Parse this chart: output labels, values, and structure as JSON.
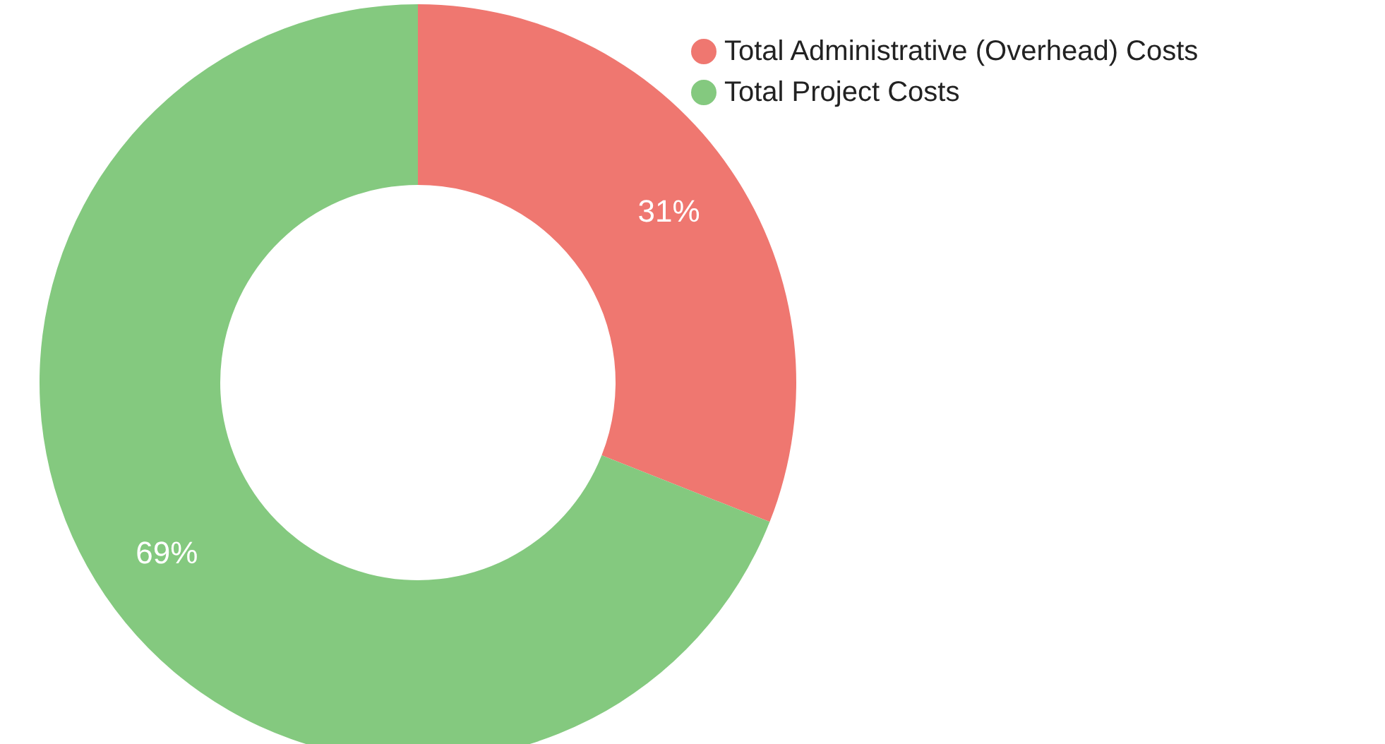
{
  "chart_data": {
    "type": "donut",
    "categories": [
      "Total Administrative (Overhead) Costs",
      "Total Project Costs"
    ],
    "values": [
      31,
      69
    ],
    "colors": [
      "#ef7770",
      "#84c97f"
    ],
    "value_labels": [
      "31%",
      "69%"
    ],
    "legend": "top right"
  }
}
